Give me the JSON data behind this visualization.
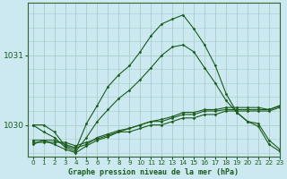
{
  "title": "Graphe pression niveau de la mer (hPa)",
  "background_color": "#cce8f0",
  "grid_color": "#aacccc",
  "line_color": "#1a5c1a",
  "xlim": [
    -0.5,
    23
  ],
  "ylim": [
    1029.55,
    1031.75
  ],
  "yticks": [
    1030,
    1031
  ],
  "xticks": [
    0,
    1,
    2,
    3,
    4,
    5,
    6,
    7,
    8,
    9,
    10,
    11,
    12,
    13,
    14,
    15,
    16,
    17,
    18,
    19,
    20,
    21,
    22,
    23
  ],
  "series": [
    {
      "x": [
        0,
        1,
        2,
        3,
        4,
        5,
        6,
        7,
        8,
        9,
        10,
        11,
        12,
        13,
        14,
        15,
        16,
        17,
        18,
        19,
        20,
        21,
        22,
        23
      ],
      "y": [
        1029.75,
        1029.75,
        1029.75,
        1029.75,
        1029.7,
        1029.75,
        1029.8,
        1029.85,
        1029.9,
        1029.9,
        1029.95,
        1030.0,
        1030.0,
        1030.05,
        1030.1,
        1030.1,
        1030.15,
        1030.15,
        1030.2,
        1030.2,
        1030.2,
        1030.2,
        1030.2,
        1030.25
      ]
    },
    {
      "x": [
        0,
        1,
        2,
        3,
        4,
        5,
        6,
        7,
        8,
        9,
        10,
        11,
        12,
        13,
        14,
        15,
        16,
        17,
        18,
        19,
        20,
        21,
        22,
        23
      ],
      "y": [
        1029.78,
        1029.78,
        1029.78,
        1029.72,
        1029.67,
        1029.72,
        1029.82,
        1029.87,
        1029.92,
        1029.95,
        1030.0,
        1030.05,
        1030.05,
        1030.1,
        1030.15,
        1030.15,
        1030.2,
        1030.2,
        1030.22,
        1030.22,
        1030.22,
        1030.22,
        1030.22,
        1030.27
      ]
    },
    {
      "x": [
        0,
        1,
        2,
        3,
        4,
        5,
        6,
        7,
        8,
        9,
        10,
        11,
        12,
        13,
        14,
        15,
        16,
        17,
        18,
        19,
        20,
        21,
        22,
        23
      ],
      "y": [
        1029.72,
        1029.78,
        1029.72,
        1029.65,
        1029.6,
        1029.7,
        1029.78,
        1029.83,
        1029.9,
        1029.95,
        1030.0,
        1030.05,
        1030.08,
        1030.12,
        1030.18,
        1030.18,
        1030.22,
        1030.22,
        1030.25,
        1030.25,
        1030.25,
        1030.25,
        1030.22,
        1030.28
      ]
    },
    {
      "x": [
        0,
        1,
        2,
        3,
        4,
        5,
        6,
        7,
        8,
        9,
        10,
        11,
        12,
        13,
        14,
        15,
        16,
        17,
        18,
        19,
        20,
        21,
        22,
        23
      ],
      "y": [
        1030.0,
        1029.9,
        1029.82,
        1029.68,
        1029.62,
        1029.82,
        1030.05,
        1030.22,
        1030.38,
        1030.5,
        1030.65,
        1030.82,
        1031.0,
        1031.12,
        1031.15,
        1031.05,
        1030.82,
        1030.6,
        1030.35,
        1030.18,
        1030.05,
        1029.98,
        1029.72,
        1029.62
      ]
    },
    {
      "x": [
        0,
        1,
        2,
        3,
        4,
        5,
        6,
        7,
        8,
        9,
        10,
        11,
        12,
        13,
        14,
        15,
        16,
        17,
        18,
        19,
        20,
        21,
        22,
        23
      ],
      "y": [
        1030.0,
        1030.0,
        1029.9,
        1029.7,
        1029.65,
        1030.02,
        1030.28,
        1030.55,
        1030.72,
        1030.85,
        1031.05,
        1031.28,
        1031.45,
        1031.52,
        1031.58,
        1031.38,
        1031.15,
        1030.85,
        1030.45,
        1030.18,
        1030.05,
        1030.02,
        1029.78,
        1029.65
      ]
    }
  ]
}
